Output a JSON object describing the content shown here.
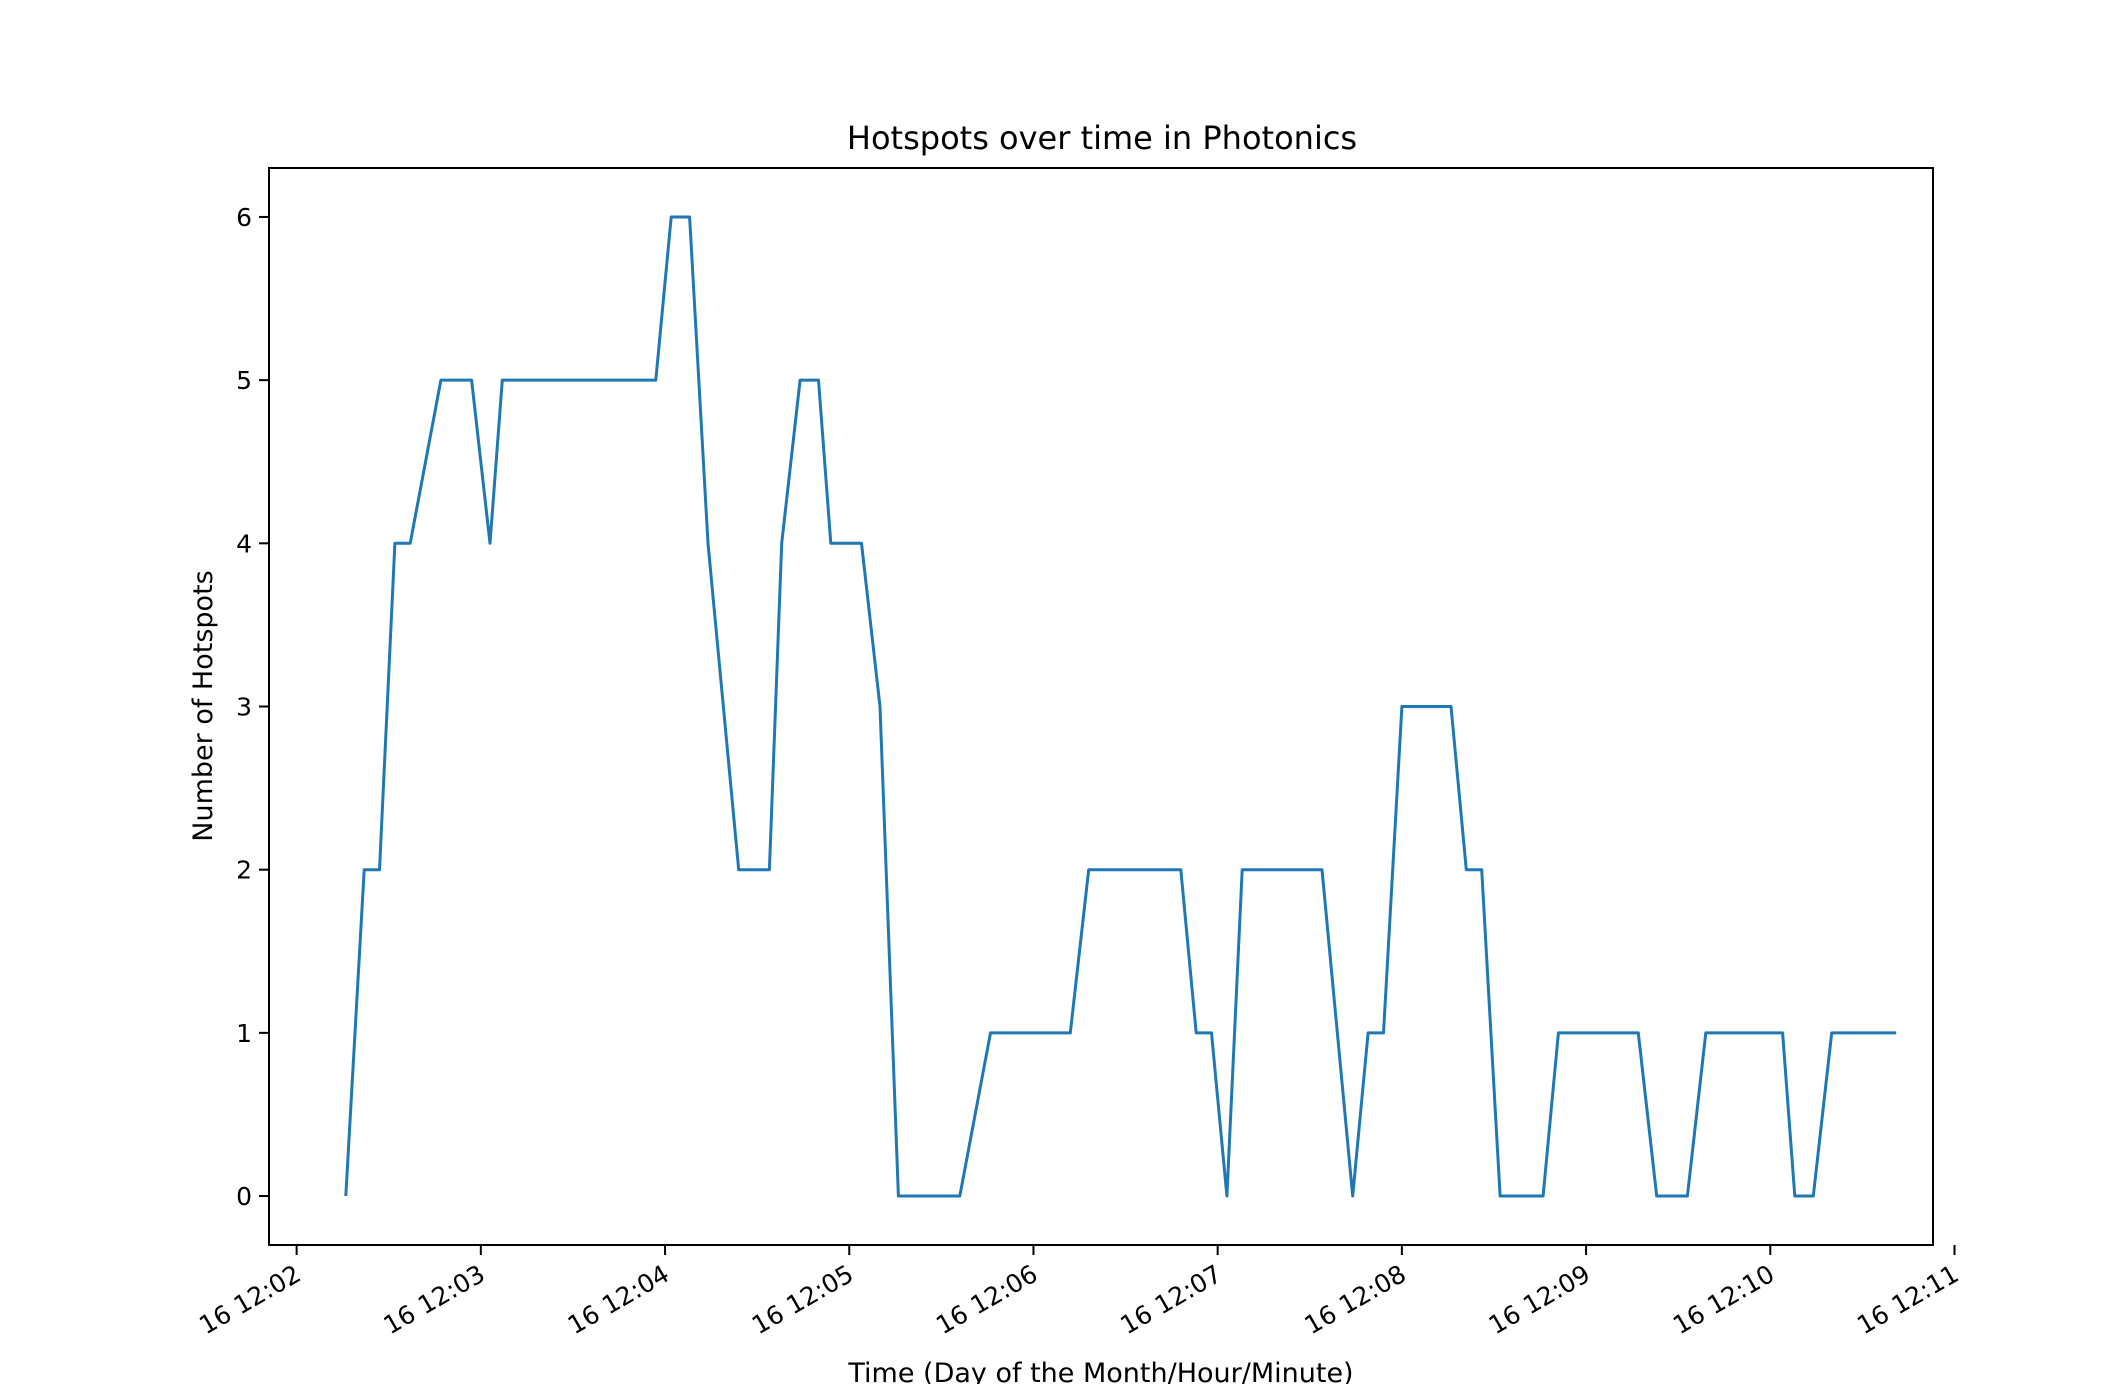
{
  "chart_data": {
    "type": "line",
    "title": "Hotspots over time in Photonics",
    "xlabel": "Time (Day of the Month/Hour/Minute)",
    "ylabel": "Number of Hotspots",
    "ylim": [
      -0.3,
      6.3
    ],
    "xlim": [
      "16 12:01:51",
      "16 12:10:53"
    ],
    "yticks": [
      0,
      1,
      2,
      3,
      4,
      5,
      6
    ],
    "xticks": [
      "16 12:02",
      "16 12:03",
      "16 12:04",
      "16 12:05",
      "16 12:06",
      "16 12:07",
      "16 12:08",
      "16 12:09",
      "16 12:10",
      "16 12:11"
    ],
    "grid": false,
    "color": "#1f77b4",
    "series": [
      {
        "x": [
          "16 12:02:16",
          "16 12:02:22",
          "16 12:02:27",
          "16 12:02:32",
          "16 12:02:37",
          "16 12:02:47",
          "16 12:02:57",
          "16 12:03:03",
          "16 12:03:07",
          "16 12:03:57",
          "16 12:04:02",
          "16 12:04:08",
          "16 12:04:14",
          "16 12:04:24",
          "16 12:04:34",
          "16 12:04:38",
          "16 12:04:44",
          "16 12:04:50",
          "16 12:04:54",
          "16 12:05:04",
          "16 12:05:10",
          "16 12:05:16",
          "16 12:05:36",
          "16 12:05:46",
          "16 12:06:12",
          "16 12:06:18",
          "16 12:06:48",
          "16 12:06:53",
          "16 12:06:58",
          "16 12:07:03",
          "16 12:07:08",
          "16 12:07:34",
          "16 12:07:44",
          "16 12:07:49",
          "16 12:07:54",
          "16 12:08:00",
          "16 12:08:16",
          "16 12:08:21",
          "16 12:08:26",
          "16 12:08:32",
          "16 12:08:46",
          "16 12:08:51",
          "16 12:09:17",
          "16 12:09:23",
          "16 12:09:33",
          "16 12:09:39",
          "16 12:10:04",
          "16 12:10:08",
          "16 12:10:14",
          "16 12:10:20",
          "16 12:10:41"
        ],
        "y": [
          0,
          2,
          2,
          4,
          4,
          5,
          5,
          4,
          5,
          5,
          6,
          6,
          4,
          2,
          2,
          4,
          5,
          5,
          4,
          4,
          3,
          0,
          0,
          1,
          1,
          2,
          2,
          1,
          1,
          0,
          2,
          2,
          0,
          1,
          1,
          3,
          3,
          2,
          2,
          0,
          0,
          1,
          1,
          0,
          0,
          1,
          1,
          0,
          0,
          1,
          1
        ]
      }
    ]
  }
}
